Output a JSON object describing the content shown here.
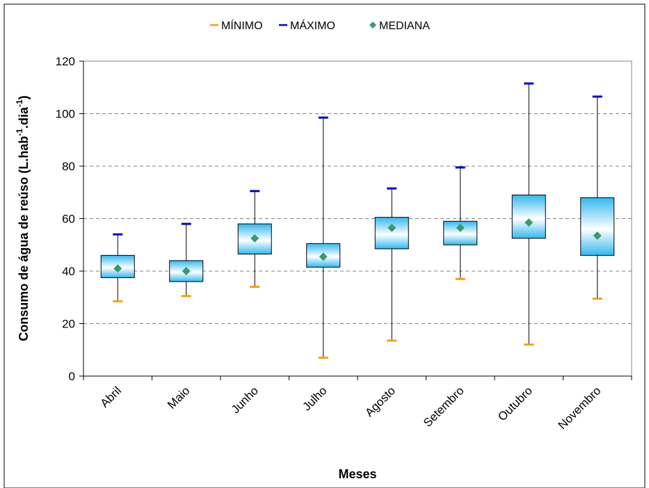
{
  "chart_data": {
    "type": "boxplot",
    "xlabel": "Meses",
    "ylabel": "Consumo de água de reúso (L.hab",
    "ylabel_sup1": "-1",
    "ylabel_mid": ".dia",
    "ylabel_sup2": "-1",
    "ylabel_end": ")",
    "ylim": [
      0,
      120
    ],
    "yticks": [
      "0",
      "20",
      "40",
      "60",
      "80",
      "100",
      "120"
    ],
    "grid": true,
    "legend_position": "top-center",
    "legend": [
      {
        "label": "MÍNIMO",
        "color": "#f5a000",
        "marker": "dash"
      },
      {
        "label": "MÁXIMO",
        "color": "#0000cc",
        "marker": "dash"
      },
      {
        "label": "MEDIANA",
        "color": "#3a9a6a",
        "marker": "diamond"
      }
    ],
    "colors": {
      "min": "#f5a000",
      "max": "#0000cc",
      "median": "#3a9a6a",
      "box_top": "#33b8f0",
      "box_mid": "#ffffff",
      "grid": "#808080"
    },
    "categories": [
      "Abril",
      "Maio",
      "Junho",
      "Julho",
      "Agosto",
      "Setembro",
      "Outubro",
      "Novembro"
    ],
    "min": [
      28.5,
      30.5,
      34,
      7,
      13.5,
      37,
      12,
      29.5
    ],
    "q1": [
      37.5,
      36,
      46.5,
      41.5,
      48.5,
      50,
      52.5,
      46
    ],
    "median": [
      41,
      40,
      52.5,
      45.5,
      56.5,
      56.5,
      58.5,
      53.5
    ],
    "q3": [
      46,
      44,
      58,
      50.5,
      60.5,
      59,
      69,
      68
    ],
    "max": [
      54,
      58,
      70.5,
      98.5,
      71.5,
      79.5,
      111.5,
      106.5
    ]
  }
}
